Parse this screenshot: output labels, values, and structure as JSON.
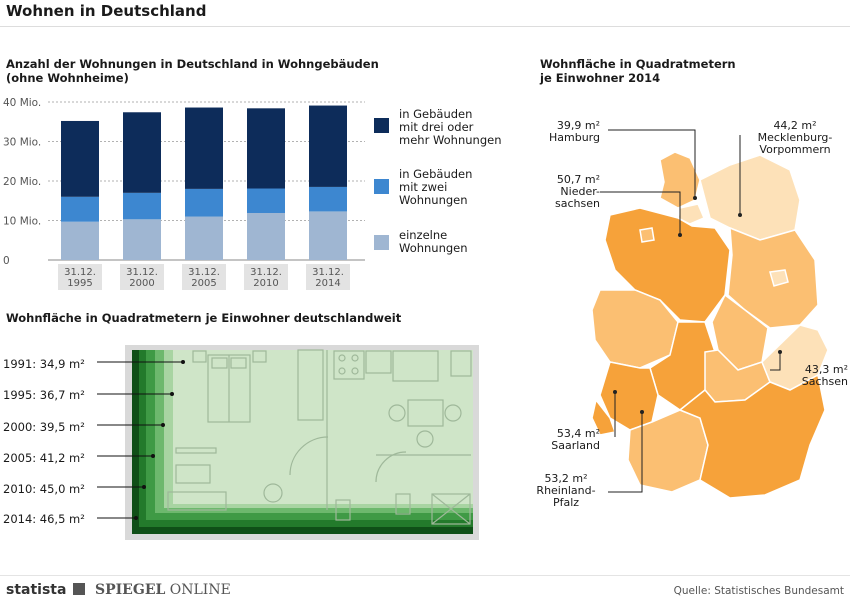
{
  "title": "Wohnen in Deutschland",
  "colors": {
    "dark_navy": "#0d2c5a",
    "mid_blue": "#3d87d0",
    "light_blue": "#9fb6d2",
    "orange_dark": "#f6a23a",
    "orange_mid": "#fbbf72",
    "orange_light": "#fde1b8",
    "green_dark": "#1f6a24",
    "green_light": "#cfe5c8"
  },
  "bar_chart": {
    "heading_line1": "Anzahl der Wohnungen in Deutschland in Wohngebäuden",
    "heading_line2": "(ohne Wohnheime)",
    "legend": [
      {
        "line1": "in Gebäuden",
        "line2": "mit drei oder",
        "line3": "mehr Wohnungen",
        "color": "#0d2c5a"
      },
      {
        "line1": "in Gebäuden",
        "line2": "mit zwei",
        "line3": "Wohnungen",
        "color": "#3d87d0"
      },
      {
        "line1": "einzelne",
        "line2": "Wohnungen",
        "line3": "",
        "color": "#9fb6d2"
      }
    ]
  },
  "chart_data": {
    "type": "bar",
    "stacked": true,
    "categories": [
      [
        "31.12.",
        "1995"
      ],
      [
        "31.12.",
        "2000"
      ],
      [
        "31.12.",
        "2005"
      ],
      [
        "31.12.",
        "2010"
      ],
      [
        "31.12.",
        "2014"
      ]
    ],
    "series": [
      {
        "name": "einzelne Wohnungen",
        "values": [
          9.7,
          10.3,
          11.0,
          11.9,
          12.3
        ],
        "color": "#9fb6d2"
      },
      {
        "name": "in Gebäuden mit zwei Wohnungen",
        "values": [
          6.3,
          6.7,
          7.0,
          6.2,
          6.2
        ],
        "color": "#3d87d0"
      },
      {
        "name": "in Gebäuden mit drei oder mehr Wohnungen",
        "values": [
          19.2,
          20.4,
          20.6,
          20.3,
          20.6
        ],
        "color": "#0d2c5a"
      }
    ],
    "yticks": [
      "0",
      "10 Mio.",
      "20 Mio.",
      "30 Mio.",
      "40 Mio."
    ],
    "yvalues": [
      0,
      10,
      20,
      30,
      40
    ],
    "ylim": [
      0,
      40
    ],
    "grid": true
  },
  "floor": {
    "heading": "Wohnfläche in Quadratmetern je Einwohner deutschlandweit",
    "items": [
      {
        "label": "1991: 34,9 m²",
        "value": 34.9
      },
      {
        "label": "1995: 36,7 m²",
        "value": 36.7
      },
      {
        "label": "2000: 39,5 m²",
        "value": 39.5
      },
      {
        "label": "2005: 41,2 m²",
        "value": 41.2
      },
      {
        "label": "2010: 45,0 m²",
        "value": 45.0
      },
      {
        "label": "2014: 46,5 m²",
        "value": 46.5
      }
    ]
  },
  "map": {
    "heading_line1": "Wohnfläche in Quadratmetern",
    "heading_line2": "je Einwohner 2014",
    "hamburg": {
      "value": "39,9 m²",
      "name": "Hamburg"
    },
    "mv": {
      "value": "44,2 m²",
      "name1": "Mecklenburg-",
      "name2": "Vorpommern"
    },
    "ns": {
      "value": "50,7 m²",
      "name1": "Nieder-",
      "name2": "sachsen"
    },
    "sachsen": {
      "value": "43,3 m²",
      "name": "Sachsen"
    },
    "saarland": {
      "value": "53,4 m²",
      "name": "Saarland"
    },
    "rp": {
      "value": "53,2 m²",
      "name1": "Rheinland-",
      "name2": "Pfalz"
    }
  },
  "footer": {
    "brand1": "statista",
    "brand2a": "SPIEGEL",
    "brand2b": "ONLINE",
    "source": "Quelle: Statistisches Bundesamt"
  }
}
